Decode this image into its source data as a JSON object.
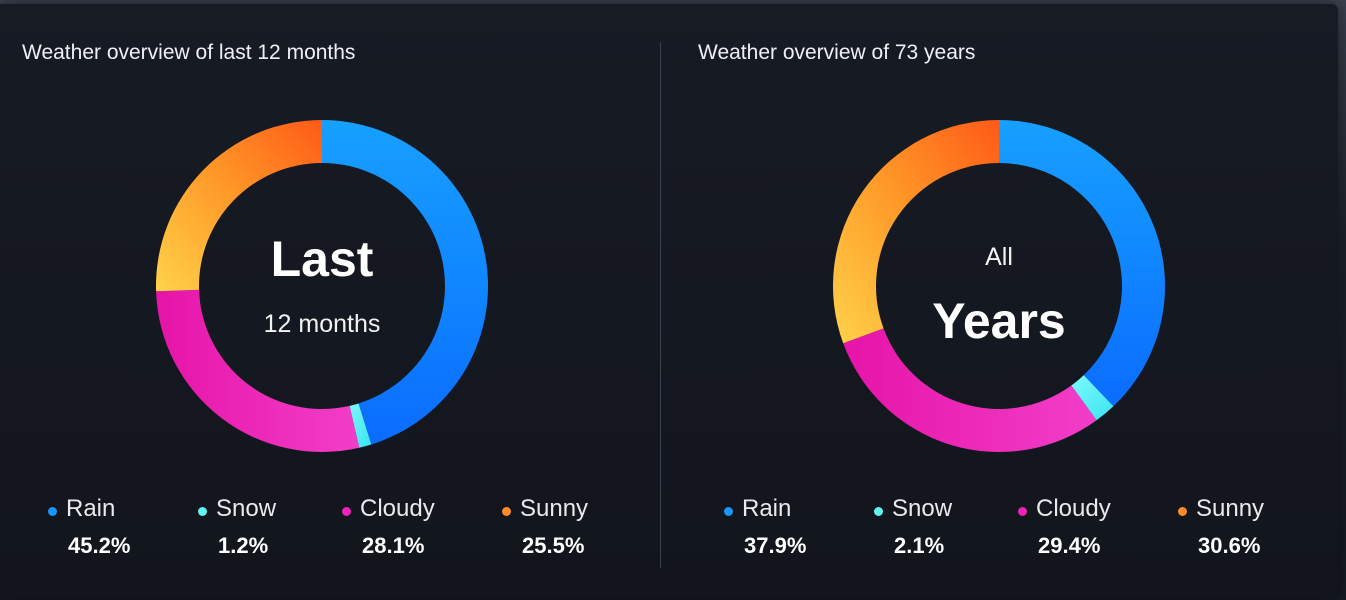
{
  "colors": {
    "rain": "#1a94ff",
    "snow": "#5ff2f2",
    "cloudy": "#ee22b8",
    "sunny": "#ff8a2a"
  },
  "chart_data": [
    {
      "type": "pie",
      "title": "Weather overview of last 12 months",
      "center_line1": "Last",
      "center_line2": "12 months",
      "categories": [
        "Rain",
        "Snow",
        "Cloudy",
        "Sunny"
      ],
      "values": [
        45.2,
        1.2,
        28.1,
        25.5
      ],
      "value_labels": [
        "45.2%",
        "1.2%",
        "28.1%",
        "25.5%"
      ]
    },
    {
      "type": "pie",
      "title": "Weather overview of 73 years",
      "center_line1": "All",
      "center_line2": "Years",
      "categories": [
        "Rain",
        "Snow",
        "Cloudy",
        "Sunny"
      ],
      "values": [
        37.9,
        2.1,
        29.4,
        30.6
      ],
      "value_labels": [
        "37.9%",
        "2.1%",
        "29.4%",
        "30.6%"
      ]
    }
  ]
}
